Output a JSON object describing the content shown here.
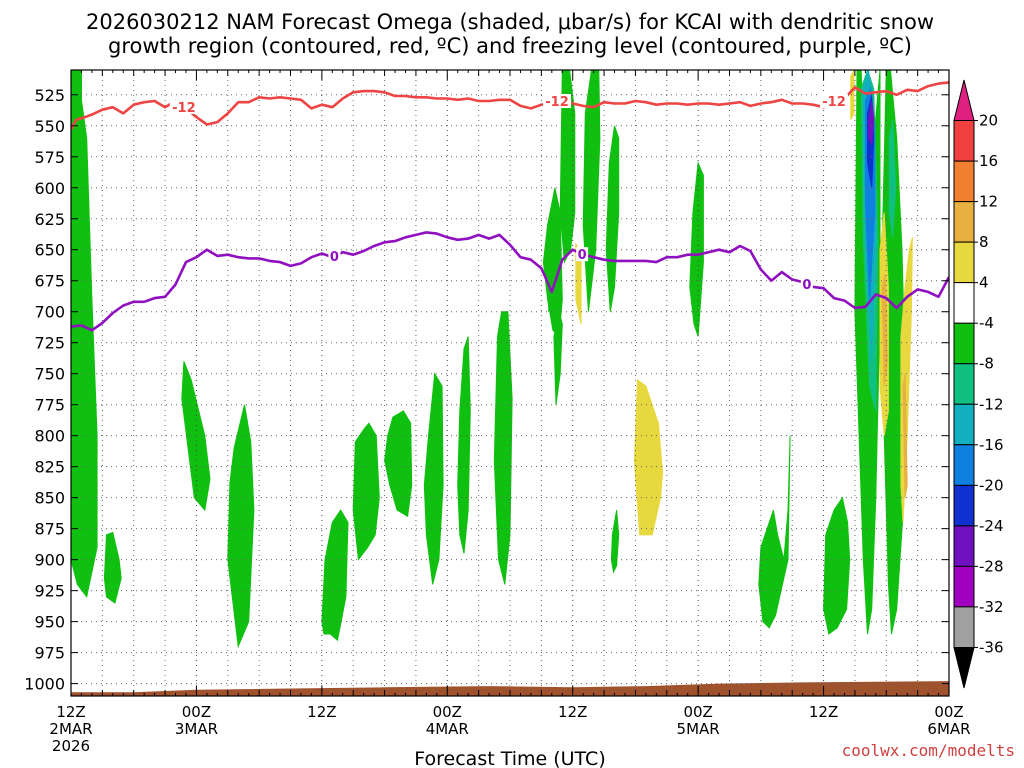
{
  "chart_data": {
    "type": "heatmap",
    "title_line1": "2026030212 NAM Forecast Omega (shaded, μbar/s) for KCAI with dendritic snow",
    "title_line2": "growth region (contoured, red, ºC) and freezing level (contoured, purple, ºC)",
    "xlabel": "Forecast Time (UTC)",
    "credit": "coolwx.com/modelts",
    "x_range_hours": [
      0,
      84
    ],
    "y_range_hpa": [
      505,
      1010
    ],
    "y_ticks": [
      525,
      550,
      575,
      600,
      625,
      650,
      675,
      700,
      725,
      750,
      775,
      800,
      825,
      850,
      875,
      900,
      925,
      950,
      975,
      1000
    ],
    "x_ticks": [
      {
        "hour": 0,
        "l1": "12Z",
        "l2": "2MAR",
        "l3": "2026"
      },
      {
        "hour": 12,
        "l1": "00Z",
        "l2": "3MAR",
        "l3": ""
      },
      {
        "hour": 24,
        "l1": "12Z",
        "l2": "",
        "l3": ""
      },
      {
        "hour": 36,
        "l1": "00Z",
        "l2": "4MAR",
        "l3": ""
      },
      {
        "hour": 48,
        "l1": "12Z",
        "l2": "",
        "l3": ""
      },
      {
        "hour": 60,
        "l1": "00Z",
        "l2": "5MAR",
        "l3": ""
      },
      {
        "hour": 72,
        "l1": "12Z",
        "l2": "",
        "l3": ""
      },
      {
        "hour": 84,
        "l1": "00Z",
        "l2": "6MAR",
        "l3": ""
      }
    ],
    "colorbar": {
      "levels": [
        "20",
        "16",
        "12",
        "8",
        "4",
        "-4",
        "-8",
        "-12",
        "-16",
        "-20",
        "-24",
        "-28",
        "-32",
        "-36"
      ],
      "colors": [
        "#e02080",
        "#f04040",
        "#f08030",
        "#e8b040",
        "#e8d840",
        "#ffffff",
        "#10c010",
        "#10c080",
        "#10b0c0",
        "#1080e0",
        "#1030d0",
        "#7010c0",
        "#a000c0",
        "#a0a0a0",
        "#000000"
      ]
    },
    "series": [
      {
        "name": "-12 ºC isotherm (dendritic growth region)",
        "color": "#ee4444",
        "label": "-12",
        "label_hours": [
          10.8,
          46.5,
          73.0
        ],
        "x": [
          0,
          0.5,
          1,
          2,
          3,
          4,
          5,
          6,
          7,
          8,
          9,
          10,
          11,
          12,
          13,
          14,
          15,
          16,
          17,
          18,
          19,
          20,
          21,
          22,
          23,
          24,
          25,
          26,
          27,
          28,
          29,
          30,
          31,
          32,
          33,
          34,
          35,
          36,
          37,
          38,
          39,
          40,
          41,
          42,
          43,
          44,
          45,
          46,
          47,
          48,
          49,
          50,
          51,
          52,
          53,
          54,
          55,
          56,
          57,
          58,
          59,
          60,
          61,
          62,
          63,
          64,
          65,
          66,
          67,
          68,
          69,
          70,
          71,
          72,
          73,
          74,
          75,
          76,
          77,
          78,
          79,
          80,
          81,
          82,
          83,
          84
        ],
        "y": [
          553,
          545,
          544,
          541,
          537,
          535,
          540,
          533,
          531,
          530,
          535,
          530,
          536,
          543,
          549,
          547,
          540,
          531,
          531,
          527,
          528,
          527,
          528,
          529,
          536,
          533,
          535,
          528,
          523,
          522,
          522,
          523,
          526,
          526,
          527,
          527,
          528,
          528,
          529,
          528,
          530,
          530,
          529,
          529,
          534,
          536,
          533,
          532,
          528,
          532,
          534,
          535,
          531,
          532,
          532,
          530,
          531,
          533,
          532,
          532,
          533,
          532,
          532,
          533,
          532,
          531,
          534,
          532,
          531,
          529,
          532,
          532,
          533,
          535,
          530,
          528,
          519,
          524,
          523,
          522,
          525,
          521,
          522,
          518,
          516,
          515
        ]
      },
      {
        "name": "0 ºC isotherm (freezing level)",
        "color": "#9010c0",
        "label": "0",
        "label_hours": [
          25.2,
          48.9,
          70.4
        ],
        "x": [
          0,
          1,
          2,
          3,
          4,
          5,
          6,
          7,
          8,
          9,
          10,
          11,
          12,
          13,
          14,
          15,
          16,
          17,
          18,
          19,
          20,
          21,
          22,
          23,
          24,
          25,
          26,
          27,
          28,
          29,
          30,
          31,
          32,
          33,
          34,
          35,
          36,
          37,
          38,
          39,
          40,
          41,
          42,
          43,
          44,
          45,
          46,
          47,
          48,
          49,
          50,
          51,
          52,
          53,
          54,
          55,
          56,
          57,
          58,
          59,
          60,
          61,
          62,
          63,
          64,
          65,
          66,
          67,
          68,
          69,
          70,
          71,
          72,
          73,
          74,
          75,
          76,
          77,
          78,
          79,
          80,
          81,
          82,
          83,
          84
        ],
        "y": [
          712,
          711,
          715,
          709,
          701,
          695,
          692,
          692,
          689,
          688,
          678,
          660,
          656,
          650,
          655,
          654,
          656,
          657,
          657,
          659,
          660,
          663,
          661,
          656,
          653,
          656,
          652,
          654,
          651,
          647,
          644,
          643,
          640,
          638,
          636,
          637,
          640,
          642,
          641,
          638,
          641,
          638,
          646,
          656,
          658,
          665,
          684,
          658,
          650,
          654,
          656,
          658,
          659,
          659,
          659,
          659,
          660,
          656,
          656,
          654,
          654,
          652,
          650,
          652,
          647,
          651,
          666,
          675,
          668,
          674,
          676,
          680,
          681,
          689,
          691,
          697,
          696,
          686,
          689,
          697,
          688,
          682,
          684,
          688,
          672
        ]
      }
    ],
    "shaded_regions": [
      {
        "fill": "#10c010",
        "h": [
          0,
          0.6,
          1.5,
          2.0,
          2.5,
          2.5,
          1.5,
          0.6,
          0
        ],
        "p": [
          505,
          505,
          560,
          690,
          800,
          890,
          930,
          920,
          900
        ]
      },
      {
        "fill": "#10c010",
        "h": [
          0.4,
          1.0,
          1.0,
          0.4
        ],
        "p": [
          505,
          505,
          555,
          555
        ]
      },
      {
        "fill": "#10c010",
        "h": [
          1.0,
          1.5,
          1.5,
          1.0
        ],
        "p": [
          795,
          795,
          840,
          840
        ]
      },
      {
        "fill": "#10c010",
        "h": [
          3.4,
          4.0,
          4.6,
          4.8,
          4.2,
          3.4,
          3.2
        ],
        "p": [
          880,
          878,
          900,
          915,
          935,
          930,
          915
        ]
      },
      {
        "fill": "#10c010",
        "h": [
          10.8,
          11.5,
          12.8,
          13.3,
          12.8,
          11.8,
          10.6
        ],
        "p": [
          740,
          755,
          800,
          835,
          860,
          850,
          770
        ]
      },
      {
        "fill": "#10c010",
        "h": [
          15.2,
          15.6,
          16.6,
          17.2,
          17.5,
          17.0,
          16.0,
          15.0
        ],
        "p": [
          838,
          810,
          775,
          805,
          860,
          950,
          970,
          900
        ]
      },
      {
        "fill": "#10c010",
        "h": [
          24.0,
          24.3,
          25.0,
          25.8,
          26.5,
          26.3,
          25.5,
          24.8,
          24.2
        ],
        "p": [
          950,
          900,
          870,
          860,
          870,
          930,
          965,
          960,
          960
        ]
      },
      {
        "fill": "#10c010",
        "h": [
          27.2,
          28.0,
          28.5,
          29.2,
          29.5,
          29.1,
          28.4,
          27.5,
          27.0
        ],
        "p": [
          805,
          795,
          790,
          800,
          850,
          880,
          890,
          900,
          860
        ]
      },
      {
        "fill": "#10c010",
        "h": [
          30.3,
          30.8,
          31.8,
          32.5,
          32.6,
          32.2,
          31.2,
          30.5,
          30.0
        ],
        "p": [
          800,
          785,
          780,
          790,
          840,
          865,
          860,
          840,
          820
        ]
      },
      {
        "fill": "#10c010",
        "h": [
          34.2,
          34.8,
          35.5,
          35.6,
          35.2,
          34.6,
          34.0,
          33.8
        ],
        "p": [
          800,
          750,
          760,
          840,
          900,
          920,
          880,
          840
        ]
      },
      {
        "fill": "#10c010",
        "h": [
          37.2,
          37.6,
          38.0,
          38.2,
          38.0,
          37.6,
          37.2,
          37.0
        ],
        "p": [
          780,
          730,
          720,
          780,
          860,
          895,
          880,
          840
        ]
      },
      {
        "fill": "#10c010",
        "h": [
          40.8,
          41.2,
          41.8,
          42.2,
          42.0,
          41.5,
          40.9,
          40.5
        ],
        "p": [
          720,
          700,
          700,
          770,
          880,
          920,
          900,
          820
        ]
      },
      {
        "fill": "#10c010",
        "h": [
          45.6,
          46.3,
          46.8,
          47.0,
          46.7,
          46.1,
          45.6,
          45.2
        ],
        "p": [
          630,
          600,
          620,
          690,
          720,
          715,
          690,
          660
        ]
      },
      {
        "fill": "#10c010",
        "h": [
          45.7,
          46.1,
          46.4,
          46.1,
          45.7
        ],
        "p": [
          660,
          645,
          650,
          680,
          700
        ]
      },
      {
        "fill": "#10c010",
        "h": [
          46.2,
          46.7,
          47.0,
          46.8,
          46.4
        ],
        "p": [
          720,
          700,
          710,
          750,
          775
        ]
      },
      {
        "fill": "#10c010",
        "h": [
          47.0,
          47.7,
          48.2,
          48.2,
          47.8,
          47.2,
          46.8
        ],
        "p": [
          505,
          505,
          540,
          620,
          650,
          660,
          620
        ]
      },
      {
        "fill": "#10c010",
        "h": [
          49.2,
          49.8,
          50.5,
          50.6,
          50.2,
          49.5,
          49.0
        ],
        "p": [
          540,
          505,
          505,
          560,
          650,
          700,
          630
        ]
      },
      {
        "fill": "#10c010",
        "h": [
          51.5,
          52.0,
          52.4,
          52.4,
          52.0,
          51.6,
          51.2
        ],
        "p": [
          580,
          550,
          560,
          620,
          680,
          700,
          650
        ]
      },
      {
        "fill": "#10c010",
        "h": [
          59.5,
          60.0,
          60.5,
          60.5,
          60.0,
          59.6,
          59.2
        ],
        "p": [
          620,
          580,
          590,
          660,
          720,
          710,
          680
        ]
      },
      {
        "fill": "#10c010",
        "h": [
          51.8,
          52.2,
          52.4,
          52.2,
          51.9,
          51.7
        ],
        "p": [
          880,
          860,
          880,
          905,
          910,
          900
        ]
      },
      {
        "fill": "#10c010",
        "h": [
          66.0,
          66.8,
          67.2,
          67.6,
          68.2,
          68.6,
          68.8,
          68.6,
          67.4,
          66.8,
          66.2,
          65.8
        ],
        "p": [
          890,
          870,
          860,
          880,
          900,
          860,
          800,
          900,
          945,
          955,
          950,
          920
        ]
      },
      {
        "fill": "#10c010",
        "h": [
          72.2,
          73.0,
          73.8,
          74.3,
          74.5,
          74.2,
          73.3,
          72.5,
          72.0
        ],
        "p": [
          880,
          860,
          850,
          870,
          900,
          940,
          955,
          960,
          940
        ]
      },
      {
        "fill": "#10c010",
        "h": [
          75.2,
          75.6,
          76.0,
          76.6,
          77.4,
          77.4,
          77.0,
          76.6,
          76.2,
          75.8,
          75.4,
          75.0
        ],
        "p": [
          505,
          505,
          600,
          580,
          505,
          700,
          850,
          940,
          960,
          900,
          800,
          700
        ]
      },
      {
        "fill": "#10c010",
        "h": [
          78.0,
          78.4,
          79.0,
          79.5,
          79.8,
          79.7,
          79.0,
          78.5,
          78.2,
          77.8,
          77.6
        ],
        "p": [
          505,
          505,
          560,
          650,
          750,
          850,
          940,
          960,
          920,
          800,
          650
        ]
      },
      {
        "fill": "#10c080",
        "h": [
          75.6,
          76.2,
          76.8,
          77.2,
          77.0,
          76.4,
          75.8
        ],
        "p": [
          520,
          505,
          520,
          640,
          780,
          760,
          640
        ]
      },
      {
        "fill": "#10b0c0",
        "h": [
          75.8,
          76.3,
          76.8,
          77.0,
          76.6,
          76.0
        ],
        "p": [
          520,
          505,
          540,
          640,
          740,
          640
        ]
      },
      {
        "fill": "#1080e0",
        "h": [
          76.0,
          76.5,
          76.9,
          76.9,
          76.4,
          76.0
        ],
        "p": [
          530,
          520,
          550,
          620,
          690,
          610
        ]
      },
      {
        "fill": "#1030d0",
        "h": [
          76.2,
          76.6,
          76.8,
          76.6,
          76.2
        ],
        "p": [
          540,
          525,
          560,
          600,
          580
        ]
      },
      {
        "fill": "#7010c0",
        "h": [
          76.3,
          76.6,
          76.8,
          76.6,
          76.3
        ],
        "p": [
          545,
          530,
          545,
          565,
          560
        ]
      },
      {
        "fill": "#10c080",
        "h": [
          78.3,
          78.6,
          78.9,
          78.6,
          78.3
        ],
        "p": [
          560,
          545,
          600,
          640,
          620
        ]
      },
      {
        "fill": "#e8d840",
        "h": [
          54.2,
          55.0,
          56.2,
          56.6,
          56.4,
          55.6,
          54.4,
          53.9
        ],
        "p": [
          755,
          760,
          790,
          830,
          850,
          880,
          880,
          820
        ]
      },
      {
        "fill": "#e8d840",
        "h": [
          48.3,
          48.8,
          48.8,
          48.3
        ],
        "p": [
          645,
          655,
          710,
          690
        ]
      },
      {
        "fill": "#e8d840",
        "h": [
          74.6,
          74.9,
          74.9,
          74.6
        ],
        "p": [
          510,
          505,
          540,
          545
        ]
      },
      {
        "fill": "#e8d840",
        "h": [
          77.4,
          77.8,
          78.2,
          78.2,
          77.8,
          77.4
        ],
        "p": [
          650,
          620,
          680,
          780,
          800,
          760
        ]
      },
      {
        "fill": "#e8d840",
        "h": [
          79.4,
          79.8,
          80.2,
          80.5,
          80.4,
          80.0,
          79.6,
          79.4
        ],
        "p": [
          720,
          680,
          650,
          640,
          700,
          800,
          870,
          840
        ]
      },
      {
        "fill": "#e8b040",
        "h": [
          77.6,
          77.9,
          78.1,
          77.8
        ],
        "p": [
          680,
          670,
          740,
          760
        ]
      },
      {
        "fill": "#e8b040",
        "h": [
          79.6,
          79.8,
          80.0,
          79.8
        ],
        "p": [
          760,
          750,
          840,
          850
        ]
      },
      {
        "fill": "#a0522d",
        "terrain": true,
        "h": [
          0,
          6,
          12,
          20,
          30,
          40,
          48,
          55,
          62,
          70,
          84,
          84,
          0
        ],
        "p": [
          1007,
          1007,
          1005,
          1004,
          1003,
          1002,
          1003,
          1002,
          1000,
          999,
          998,
          1012,
          1012
        ]
      }
    ]
  }
}
